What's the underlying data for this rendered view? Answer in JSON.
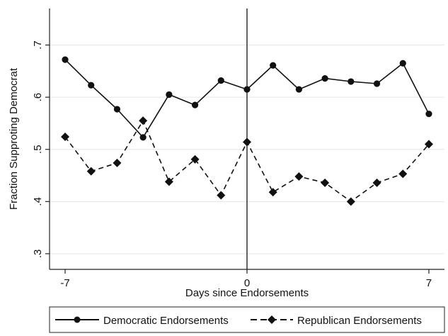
{
  "chart_data": {
    "type": "line",
    "xlabel": "Days since Endorsements",
    "ylabel": "Fraction Supproting Democrat",
    "xlim": [
      -7.6,
      7.6
    ],
    "ylim": [
      0.27,
      0.77
    ],
    "x_ticks": [
      -7,
      0,
      7
    ],
    "x_tick_labels": [
      "-7",
      "0",
      "7"
    ],
    "y_ticks": [
      0.3,
      0.4,
      0.5,
      0.6,
      0.7
    ],
    "y_tick_labels": [
      ".3",
      ".4",
      ".5",
      ".6",
      ".7"
    ],
    "grid": true,
    "vertical_reference_line_x": 0,
    "legend_position": "bottom",
    "series": [
      {
        "name": "Democratic Endorsements",
        "style": "solid",
        "marker": "circle",
        "x": [
          -7,
          -6,
          -5,
          -4,
          -3,
          -2,
          -1,
          0,
          1,
          2,
          3,
          4,
          5,
          6,
          7
        ],
        "y": [
          0.672,
          0.623,
          0.577,
          0.523,
          0.605,
          0.585,
          0.632,
          0.615,
          0.661,
          0.615,
          0.636,
          0.63,
          0.626,
          0.665,
          0.568
        ]
      },
      {
        "name": "Republican Endorsements",
        "style": "dashed",
        "marker": "diamond",
        "x": [
          -7,
          -6,
          -5,
          -4,
          -3,
          -2,
          -1,
          0,
          1,
          2,
          3,
          4,
          5,
          6,
          7
        ],
        "y": [
          0.524,
          0.458,
          0.474,
          0.555,
          0.438,
          0.481,
          0.412,
          0.514,
          0.418,
          0.448,
          0.436,
          0.4,
          0.436,
          0.453,
          0.51
        ]
      }
    ]
  }
}
